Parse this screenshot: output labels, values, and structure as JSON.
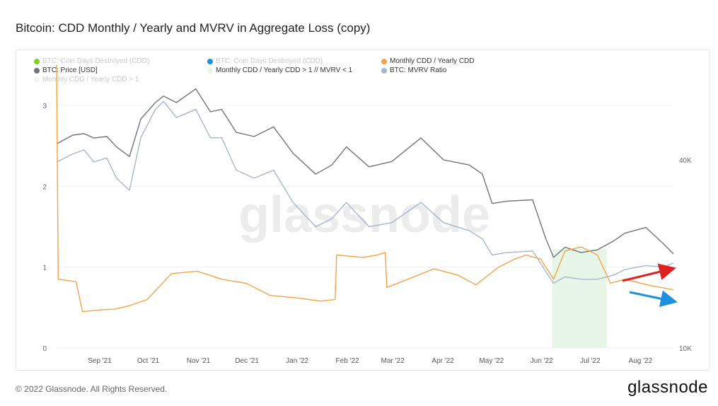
{
  "title": "Bitcoin: CDD Monthly / Yearly and MVRV in Aggregate Loss (copy)",
  "footer": {
    "copyright": "© 2022 Glassnode. All Rights Reserved.",
    "brand": "glassnode",
    "watermark": "glassnode"
  },
  "legend": [
    {
      "label": "BTC: Coin Days Destroyed (CDD)",
      "color": "#7ed321",
      "faded": true
    },
    {
      "label": "BTC: Coin Days Destroyed (CDD)",
      "color": "#1e90e0",
      "faded": true
    },
    {
      "label": "Monthly CDD / Yearly CDD",
      "color": "#f5a24a",
      "faded": false
    },
    {
      "label": "BTC: Price [USD]",
      "color": "#6e7479",
      "faded": false
    },
    {
      "label": "Monthly CDD / Yearly CDD > 1 // MVRV < 1",
      "color": "#e6f5e6",
      "faded": false
    },
    {
      "label": "BTC: MVRV Ratio",
      "color": "#a7b4d2",
      "faded": false
    },
    {
      "label": "Monthly CDD / Yearly CDD > 1",
      "color": "#f4f4f4",
      "faded": true
    }
  ],
  "chart_data": {
    "type": "line",
    "x_ticks": [
      "Sep '21",
      "Oct '21",
      "Nov '21",
      "Dec '21",
      "Jan '22",
      "Feb '22",
      "Mar '22",
      "Apr '22",
      "May '22",
      "Jun '22",
      "Jul '22",
      "Aug '22"
    ],
    "x_range": [
      "2021-08-15",
      "2022-08-31"
    ],
    "y_left": {
      "ticks": [
        "0",
        "1",
        "2",
        "3"
      ],
      "range": [
        0,
        3.3
      ]
    },
    "y_right": {
      "ticks": [
        "10K",
        "40K"
      ],
      "scale": "log",
      "range": [
        10000,
        70000
      ]
    },
    "grid": true,
    "legend_position": "top-left",
    "series": [
      {
        "name": "BTC: Price [USD]",
        "color": "#6e7479",
        "axis": "right",
        "x": [
          "2021-08-15",
          "2021-08-25",
          "2021-09-01",
          "2021-09-07",
          "2021-09-15",
          "2021-09-21",
          "2021-09-29",
          "2021-10-06",
          "2021-10-15",
          "2021-10-20",
          "2021-10-28",
          "2021-11-09",
          "2021-11-18",
          "2021-11-25",
          "2021-12-04",
          "2021-12-15",
          "2021-12-27",
          "2022-01-08",
          "2022-01-22",
          "2022-02-01",
          "2022-02-10",
          "2022-02-24",
          "2022-03-10",
          "2022-03-28",
          "2022-04-11",
          "2022-04-27",
          "2022-05-05",
          "2022-05-11",
          "2022-05-20",
          "2022-06-05",
          "2022-06-13",
          "2022-06-18",
          "2022-06-25",
          "2022-07-05",
          "2022-07-15",
          "2022-07-25",
          "2022-08-01",
          "2022-08-14",
          "2022-08-25",
          "2022-08-31"
        ],
        "values": [
          45000,
          48000,
          48500,
          47000,
          47500,
          44000,
          41000,
          54000,
          61000,
          64000,
          61000,
          67500,
          57000,
          58000,
          49000,
          47500,
          51000,
          42000,
          36000,
          38500,
          44000,
          38000,
          39500,
          47000,
          40000,
          38500,
          36000,
          29000,
          29500,
          29800,
          22500,
          19500,
          21000,
          20200,
          20600,
          22000,
          23300,
          24300,
          21500,
          20000
        ]
      },
      {
        "name": "BTC: MVRV Ratio",
        "color": "#a7b4d2",
        "axis": "left",
        "x": [
          "2021-08-15",
          "2021-08-25",
          "2021-09-01",
          "2021-09-07",
          "2021-09-15",
          "2021-09-21",
          "2021-09-29",
          "2021-10-06",
          "2021-10-15",
          "2021-10-20",
          "2021-10-28",
          "2021-11-09",
          "2021-11-18",
          "2021-11-25",
          "2021-12-04",
          "2021-12-15",
          "2021-12-27",
          "2022-01-08",
          "2022-01-22",
          "2022-02-01",
          "2022-02-10",
          "2022-02-24",
          "2022-03-10",
          "2022-03-28",
          "2022-04-11",
          "2022-04-27",
          "2022-05-05",
          "2022-05-11",
          "2022-05-20",
          "2022-06-05",
          "2022-06-13",
          "2022-06-18",
          "2022-06-25",
          "2022-07-05",
          "2022-07-15",
          "2022-07-25",
          "2022-08-01",
          "2022-08-14",
          "2022-08-25",
          "2022-08-31"
        ],
        "values": [
          2.3,
          2.4,
          2.45,
          2.3,
          2.35,
          2.1,
          1.95,
          2.6,
          2.95,
          3.05,
          2.85,
          2.95,
          2.6,
          2.6,
          2.2,
          2.1,
          2.2,
          1.8,
          1.5,
          1.6,
          1.8,
          1.5,
          1.55,
          1.8,
          1.55,
          1.45,
          1.35,
          1.15,
          1.18,
          1.2,
          0.95,
          0.8,
          0.88,
          0.85,
          0.85,
          0.9,
          0.97,
          1.02,
          1.0,
          1.05
        ]
      },
      {
        "name": "Monthly CDD / Yearly CDD",
        "color": "#f5a24a",
        "axis": "left",
        "x": [
          "2021-08-15",
          "2021-08-16",
          "2021-08-27",
          "2021-08-31",
          "2021-09-10",
          "2021-09-20",
          "2021-09-30",
          "2021-10-10",
          "2021-10-25",
          "2021-11-10",
          "2021-11-25",
          "2021-12-10",
          "2021-12-25",
          "2022-01-10",
          "2022-01-25",
          "2022-02-03",
          "2022-02-04",
          "2022-02-20",
          "2022-03-01",
          "2022-03-06",
          "2022-03-07",
          "2022-03-20",
          "2022-04-05",
          "2022-04-20",
          "2022-05-01",
          "2022-05-15",
          "2022-05-25",
          "2022-06-01",
          "2022-06-10",
          "2022-06-18",
          "2022-06-25",
          "2022-07-05",
          "2022-07-15",
          "2022-07-22",
          "2022-07-23",
          "2022-08-01",
          "2022-08-15",
          "2022-08-31"
        ],
        "values": [
          3.5,
          0.85,
          0.82,
          0.45,
          0.47,
          0.48,
          0.53,
          0.6,
          0.92,
          0.95,
          0.85,
          0.8,
          0.65,
          0.62,
          0.58,
          0.6,
          1.15,
          1.12,
          1.15,
          1.18,
          0.75,
          0.85,
          0.98,
          0.9,
          0.78,
          1.0,
          1.1,
          1.15,
          1.1,
          0.85,
          1.2,
          1.25,
          1.15,
          0.85,
          0.8,
          0.85,
          0.78,
          0.72
        ]
      }
    ],
    "shaded_region": {
      "label": "Monthly CDD / Yearly CDD > 1 // MVRV < 1",
      "from": "2022-06-17",
      "to": "2022-07-21"
    }
  }
}
